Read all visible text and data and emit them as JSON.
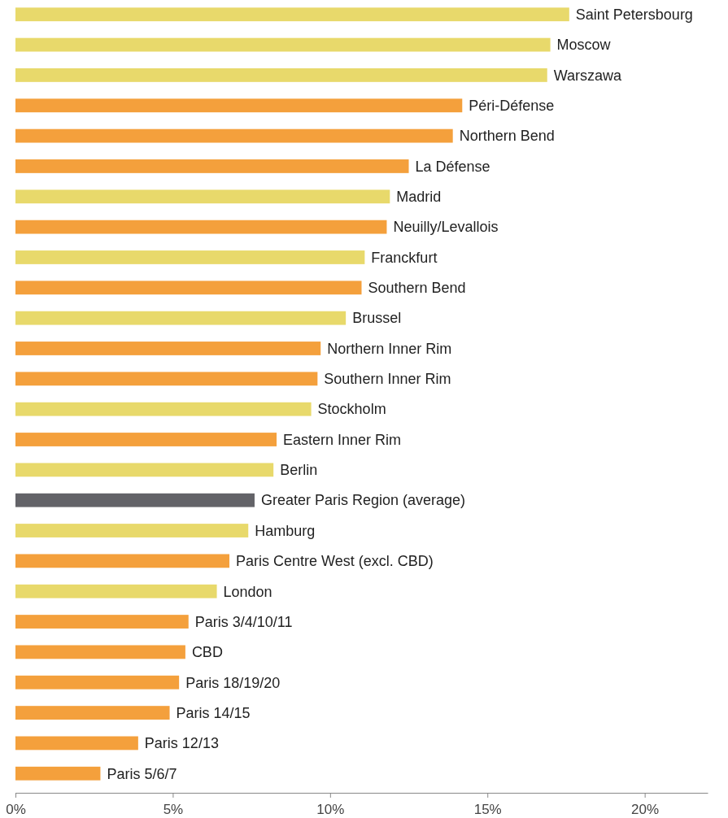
{
  "chart_data": {
    "type": "bar",
    "orientation": "horizontal",
    "categories": [
      "Saint Petersbourg",
      "Moscow",
      "Warszawa",
      "Péri-Défense",
      "Northern Bend",
      "La Défense",
      "Madrid",
      "Neuilly/Levallois",
      "Franckfurt",
      "Southern Bend",
      "Brussel",
      "Northern Inner Rim",
      "Southern Inner Rim",
      "Stockholm",
      "Eastern Inner Rim",
      "Berlin",
      "Greater Paris Region (average)",
      "Hamburg",
      "Paris Centre West (excl. CBD)",
      "London",
      "Paris 3/4/10/11",
      "CBD",
      "Paris 18/19/20",
      "Paris 14/15",
      "Paris 12/13",
      "Paris 5/6/7"
    ],
    "values": [
      17.6,
      17.0,
      16.9,
      14.2,
      13.9,
      12.5,
      11.9,
      11.8,
      11.1,
      11.0,
      10.5,
      9.7,
      9.6,
      9.4,
      8.3,
      8.2,
      7.6,
      7.4,
      6.8,
      6.4,
      5.5,
      5.4,
      5.2,
      4.9,
      3.9,
      2.7
    ],
    "colors": [
      "#e8d96b",
      "#e8d96b",
      "#e8d96b",
      "#f4a03c",
      "#f4a03c",
      "#f4a03c",
      "#e8d96b",
      "#f4a03c",
      "#e8d96b",
      "#f4a03c",
      "#e8d96b",
      "#f4a03c",
      "#f4a03c",
      "#e8d96b",
      "#f4a03c",
      "#e8d96b",
      "#636368",
      "#e8d96b",
      "#f4a03c",
      "#e8d96b",
      "#f4a03c",
      "#f4a03c",
      "#f4a03c",
      "#f4a03c",
      "#f4a03c",
      "#f4a03c"
    ],
    "xlim": [
      0,
      22
    ],
    "xticks": [
      {
        "value": 0,
        "label": "0%"
      },
      {
        "value": 5,
        "label": "5%"
      },
      {
        "value": 10,
        "label": "10%"
      },
      {
        "value": 15,
        "label": "15%"
      },
      {
        "value": 20,
        "label": "20%"
      }
    ],
    "grid": false
  }
}
